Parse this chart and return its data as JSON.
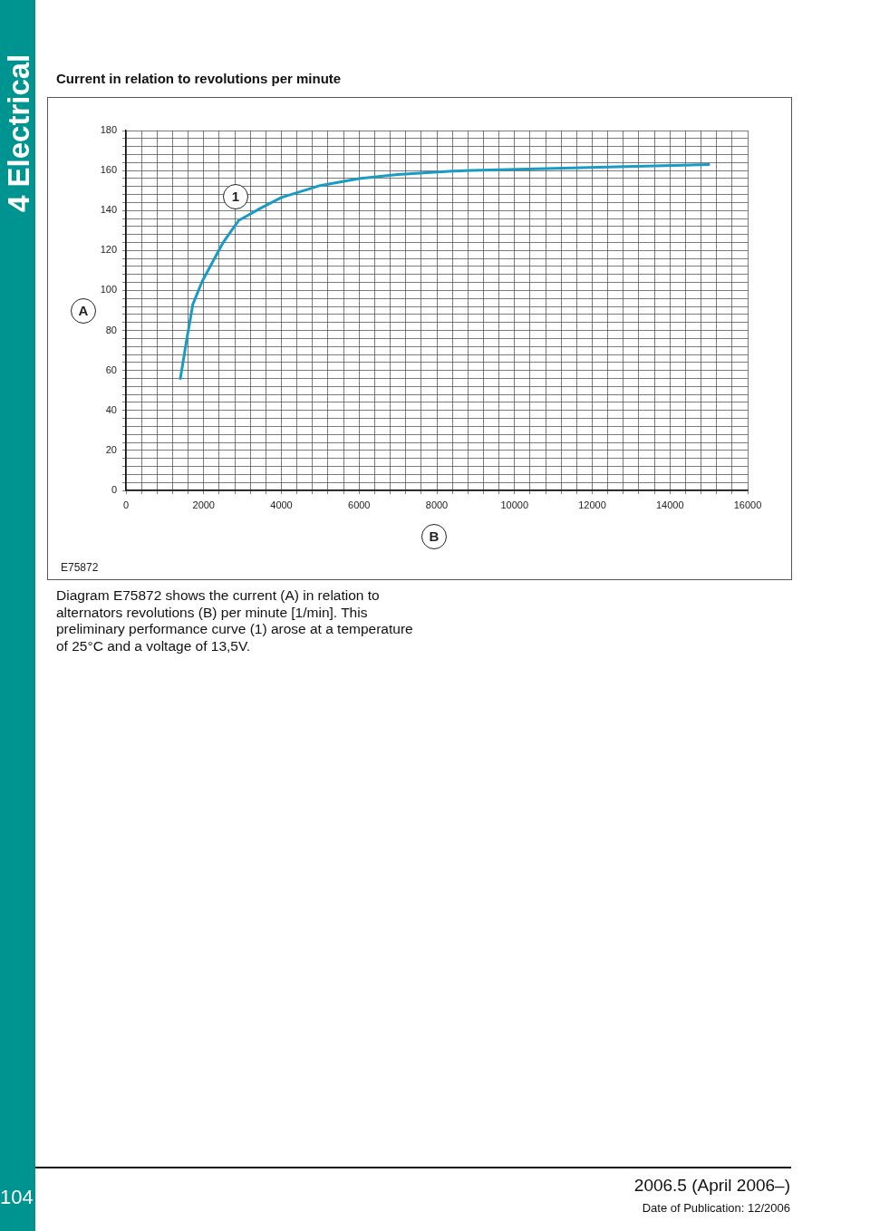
{
  "chart_data": {
    "type": "line",
    "title": "Current in relation to revolutions per minute",
    "xlabel": "B",
    "ylabel": "A",
    "x": [
      1400,
      1560,
      1720,
      1960,
      2500,
      2900,
      3500,
      4000,
      5000,
      6000,
      7000,
      8400,
      8900,
      10800,
      12400,
      15000
    ],
    "series": [
      {
        "color": "#1a9bc6",
        "values": [
          56,
          75,
          93,
          104.5,
          124,
          135,
          141.5,
          146.5,
          152.5,
          156,
          158,
          159.7,
          160,
          161,
          161.7,
          163
        ]
      }
    ],
    "xlim": [
      0,
      16000
    ],
    "ylim": [
      0,
      180
    ],
    "xticks": [
      0,
      {
        "value": 400,
        "label": null
      },
      {
        "value": 800,
        "label": null
      },
      {
        "value": 1200,
        "label": null
      },
      {
        "value": 1600,
        "label": null
      },
      2000,
      {
        "value": 2400,
        "label": null
      },
      {
        "value": 2800,
        "label": null
      },
      {
        "value": 3200,
        "label": null
      },
      {
        "value": 3600,
        "label": null
      },
      4000,
      {
        "value": 4400,
        "label": null
      },
      {
        "value": 4800,
        "label": null
      },
      {
        "value": 5200,
        "label": null
      },
      {
        "value": 5600,
        "label": null
      },
      6000,
      {
        "value": 6400,
        "label": null
      },
      {
        "value": 6800,
        "label": null
      },
      {
        "value": 7200,
        "label": null
      },
      {
        "value": 7600,
        "label": null
      },
      8000,
      {
        "value": 8400,
        "label": null
      },
      {
        "value": 8800,
        "label": null
      },
      {
        "value": 9200,
        "label": null
      },
      {
        "value": 9600,
        "label": null
      },
      10000,
      {
        "value": 10400,
        "label": null
      },
      {
        "value": 10800,
        "label": null
      },
      {
        "value": 11200,
        "label": null
      },
      {
        "value": 11600,
        "label": null
      },
      12000,
      {
        "value": 12400,
        "label": null
      },
      {
        "value": 12800,
        "label": null
      },
      {
        "value": 13200,
        "label": null
      },
      {
        "value": 13600,
        "label": null
      },
      14000,
      {
        "value": 14400,
        "label": null
      },
      {
        "value": 14800,
        "label": null
      },
      {
        "value": 15200,
        "label": null
      },
      {
        "value": 15600,
        "label": null
      },
      16000
    ],
    "yticks": [
      0,
      {
        "value": 4,
        "label": null
      },
      {
        "value": 8,
        "label": null
      },
      {
        "value": 12,
        "label": null
      },
      {
        "value": 16,
        "label": null
      },
      20,
      {
        "value": 24,
        "label": null
      },
      {
        "value": 28,
        "label": null
      },
      {
        "value": 32,
        "label": null
      },
      {
        "value": 36,
        "label": null
      },
      40,
      {
        "value": 44,
        "label": null
      },
      {
        "value": 48,
        "label": null
      },
      {
        "value": 52,
        "label": null
      },
      {
        "value": 56,
        "label": null
      },
      60,
      {
        "value": 64,
        "label": null
      },
      {
        "value": 68,
        "label": null
      },
      {
        "value": 72,
        "label": null
      },
      {
        "value": 76,
        "label": null
      },
      80,
      {
        "value": 84,
        "label": null
      },
      {
        "value": 88,
        "label": null
      },
      {
        "value": 92,
        "label": null
      },
      {
        "value": 96,
        "label": null
      },
      100,
      {
        "value": 104,
        "label": null
      },
      {
        "value": 108,
        "label": null
      },
      {
        "value": 112,
        "label": null
      },
      {
        "value": 116,
        "label": null
      },
      120,
      {
        "value": 124,
        "label": null
      },
      {
        "value": 128,
        "label": null
      },
      {
        "value": 132,
        "label": null
      },
      {
        "value": 136,
        "label": null
      },
      140,
      {
        "value": 144,
        "label": null
      },
      {
        "value": 148,
        "label": null
      },
      {
        "value": 152,
        "label": null
      },
      {
        "value": 156,
        "label": null
      },
      160,
      {
        "value": 164,
        "label": null
      },
      {
        "value": 168,
        "label": null
      },
      {
        "value": 172,
        "label": null
      },
      {
        "value": 176,
        "label": null
      },
      180
    ],
    "grid": true,
    "marker": "none",
    "line_style": "solid",
    "annotations": [
      "1",
      "E75872",
      "Diagram E75872 shows the current (A) in relation to alternators revolutions (B) per minute [1/min]. This preliminary performance curve (1) arose at a temperature of 25°C and a voltage of 13,5V.",
      "4 Electrical",
      "104",
      "2006.5 (April 2006–)",
      "Date of Publication: 12/2006"
    ]
  }
}
